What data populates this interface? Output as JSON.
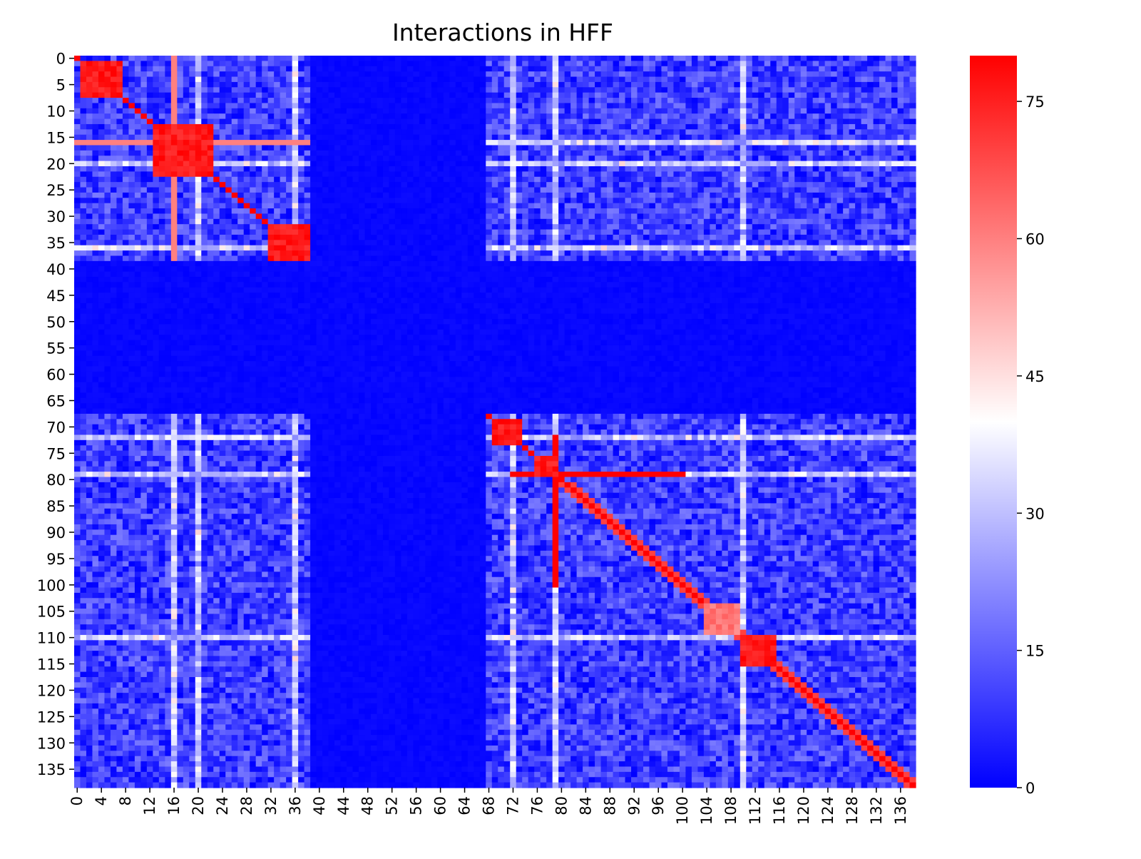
{
  "chart_data": {
    "type": "heatmap",
    "title": "Interactions in HFF",
    "n_rows": 139,
    "n_cols": 139,
    "x_tick_labels": [
      "0",
      "4",
      "8",
      "12",
      "16",
      "20",
      "24",
      "28",
      "32",
      "36",
      "40",
      "44",
      "48",
      "52",
      "56",
      "60",
      "64",
      "68",
      "72",
      "76",
      "80",
      "84",
      "88",
      "92",
      "96",
      "100",
      "104",
      "108",
      "112",
      "116",
      "120",
      "124",
      "128",
      "132",
      "136"
    ],
    "y_tick_labels": [
      "0",
      "5",
      "10",
      "15",
      "20",
      "25",
      "30",
      "35",
      "40",
      "45",
      "50",
      "55",
      "60",
      "65",
      "70",
      "75",
      "80",
      "85",
      "90",
      "95",
      "100",
      "105",
      "110",
      "115",
      "120",
      "125",
      "130",
      "135"
    ],
    "colorbar": {
      "min": 0,
      "max": 80,
      "ticks": [
        "0",
        "15",
        "30",
        "45",
        "60",
        "75"
      ],
      "colors": [
        "#0000ff",
        "#ffffff",
        "#ff0000"
      ],
      "midpoint": 40
    },
    "regions": {
      "active_ranges": [
        [
          0,
          38
        ],
        [
          68,
          138
        ]
      ],
      "empty_range": [
        39,
        67
      ],
      "background_value": 2,
      "active_background_value": 12,
      "bright_row_columns": [
        16,
        20,
        36,
        72,
        79,
        110
      ],
      "red_blocks": [
        {
          "rows": [
            1,
            7
          ],
          "cols": [
            1,
            7
          ],
          "value": 80
        },
        {
          "rows": [
            13,
            22
          ],
          "cols": [
            13,
            22
          ],
          "value": 80
        },
        {
          "rows": [
            32,
            38
          ],
          "cols": [
            32,
            38
          ],
          "value": 80
        },
        {
          "rows": [
            69,
            73
          ],
          "cols": [
            69,
            73
          ],
          "value": 80
        },
        {
          "rows": [
            76,
            79
          ],
          "cols": [
            76,
            79
          ],
          "value": 80
        },
        {
          "rows": [
            104,
            109
          ],
          "cols": [
            104,
            109
          ],
          "value": 65
        },
        {
          "rows": [
            110,
            115
          ],
          "cols": [
            110,
            115
          ],
          "value": 80
        }
      ],
      "red_lines": [
        {
          "row": 79,
          "cols": [
            72,
            100
          ],
          "value": 80
        },
        {
          "row": 16,
          "cols": [
            0,
            38
          ],
          "value": 60
        }
      ],
      "diagonal_value": 80
    }
  }
}
